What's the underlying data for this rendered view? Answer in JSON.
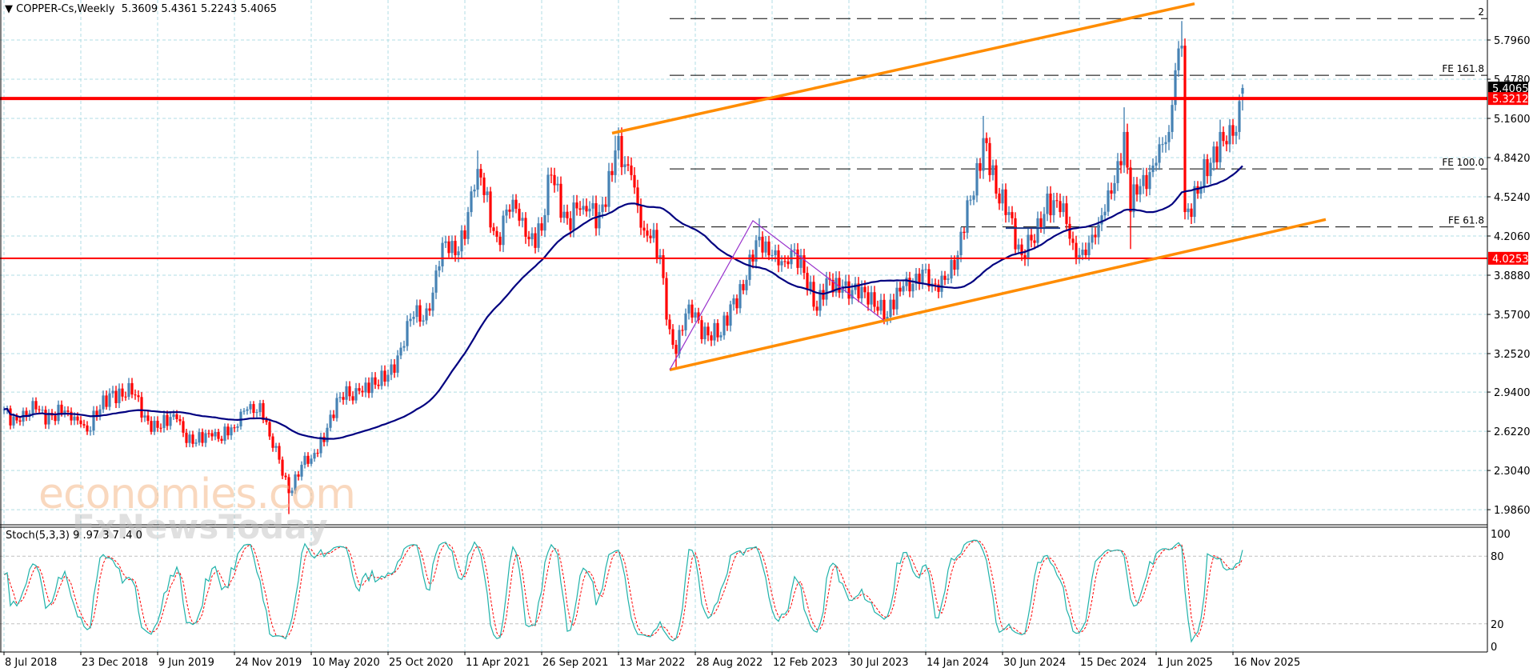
{
  "header": {
    "symbol": "COPPER-Cs,Weekly",
    "ohlc": "5.3609 5.4361 5.2243 5.4065"
  },
  "stoch_label": {
    "name": "Stoch(5,3,3)",
    "values": "9 .97 3 7 .4 0"
  },
  "watermarks": [
    "economies.com",
    "FxNewsToday"
  ],
  "colors": {
    "bull": "#4682B4",
    "bear": "#FF0000",
    "ma": "#000080",
    "channel": "#FF8C00",
    "level": "#FF0000",
    "pattern": "#9932CC",
    "stoch_main": "#20B2AA",
    "stoch_signal": "#FF0000",
    "grid": "#B0DDE4",
    "tag_current": "#000000"
  },
  "chart_data": {
    "type": "candlestick",
    "timeframe": "Weekly",
    "price_ticks": [
      "5.7960",
      "5.4780",
      "5.1600",
      "4.8420",
      "4.5240",
      "4.2060",
      "3.8880",
      "3.5700",
      "3.2520",
      "2.9400",
      "2.6220",
      "2.3040",
      "1.9860"
    ],
    "date_ticks": [
      "8 Jul 2018",
      "23 Dec 2018",
      "9 Jun 2019",
      "24 Nov 2019",
      "10 May 2020",
      "25 Oct 2020",
      "11 Apr 2021",
      "26 Sep 2021",
      "13 Mar 2022",
      "28 Aug 2022",
      "12 Feb 2023",
      "30 Jul 2023",
      "14 Jan 2024",
      "30 Jun 2024",
      "15 Dec 2024",
      "1 Jun 2025",
      "16 Nov 2025"
    ],
    "price_tags": [
      {
        "value": "5.4065",
        "kind": "current"
      },
      {
        "value": "5.3212",
        "kind": "level"
      },
      {
        "value": "4.0253",
        "kind": "level"
      }
    ],
    "closes": [
      [
        "2018-07-08",
        2.8
      ],
      [
        "2018-08-12",
        2.7
      ],
      [
        "2018-09-16",
        2.8
      ],
      [
        "2018-10-21",
        2.75
      ],
      [
        "2018-11-25",
        2.78
      ],
      [
        "2018-12-23",
        2.68
      ],
      [
        "2019-01-06",
        2.62
      ],
      [
        "2019-02-03",
        2.8
      ],
      [
        "2019-03-03",
        2.95
      ],
      [
        "2019-04-14",
        2.92
      ],
      [
        "2019-05-12",
        2.75
      ],
      [
        "2019-06-09",
        2.65
      ],
      [
        "2019-07-21",
        2.72
      ],
      [
        "2019-08-25",
        2.52
      ],
      [
        "2019-10-06",
        2.58
      ],
      [
        "2019-11-24",
        2.65
      ],
      [
        "2019-12-22",
        2.8
      ],
      [
        "2020-01-19",
        2.85
      ],
      [
        "2020-02-09",
        2.58
      ],
      [
        "2020-03-15",
        2.25
      ],
      [
        "2020-03-22",
        2.12,
        null,
        1.95
      ],
      [
        "2020-04-19",
        2.35
      ],
      [
        "2020-05-10",
        2.4
      ],
      [
        "2020-06-14",
        2.65
      ],
      [
        "2020-07-12",
        2.9
      ],
      [
        "2020-08-23",
        2.95
      ],
      [
        "2020-09-27",
        3.0
      ],
      [
        "2020-10-25",
        3.08
      ],
      [
        "2020-11-22",
        3.3
      ],
      [
        "2020-12-20",
        3.55
      ],
      [
        "2021-01-24",
        3.6
      ],
      [
        "2021-02-21",
        4.15
      ],
      [
        "2021-03-21",
        4.05
      ],
      [
        "2021-04-18",
        4.4
      ],
      [
        "2021-05-09",
        4.75,
        4.9
      ],
      [
        "2021-06-20",
        4.2
      ],
      [
        "2021-07-25",
        4.5
      ],
      [
        "2021-08-22",
        4.2
      ],
      [
        "2021-09-26",
        4.25
      ],
      [
        "2021-10-17",
        4.7
      ],
      [
        "2021-11-21",
        4.35
      ],
      [
        "2021-12-26",
        4.45
      ],
      [
        "2022-01-30",
        4.4
      ],
      [
        "2022-02-27",
        4.7
      ],
      [
        "2022-03-06",
        4.9,
        5.02
      ],
      [
        "2022-04-10",
        4.7
      ],
      [
        "2022-05-08",
        4.25
      ],
      [
        "2022-06-12",
        4.05
      ],
      [
        "2022-07-03",
        3.45
      ],
      [
        "2022-07-17",
        3.25,
        null,
        3.13
      ],
      [
        "2022-08-14",
        3.65
      ],
      [
        "2022-09-25",
        3.4
      ],
      [
        "2022-10-23",
        3.4
      ],
      [
        "2022-11-20",
        3.7
      ],
      [
        "2022-12-18",
        3.85
      ],
      [
        "2023-01-15",
        4.2,
        4.35
      ],
      [
        "2023-02-12",
        4.05
      ],
      [
        "2023-03-12",
        4.0
      ],
      [
        "2023-04-16",
        4.05
      ],
      [
        "2023-05-21",
        3.6
      ],
      [
        "2023-06-18",
        3.85
      ],
      [
        "2023-07-16",
        3.8
      ],
      [
        "2023-08-20",
        3.7
      ],
      [
        "2023-09-17",
        3.75
      ],
      [
        "2023-10-22",
        3.55
      ],
      [
        "2023-11-26",
        3.8
      ],
      [
        "2023-12-24",
        3.9
      ],
      [
        "2024-01-28",
        3.82
      ],
      [
        "2024-02-25",
        3.85
      ],
      [
        "2024-03-24",
        4.05
      ],
      [
        "2024-04-21",
        4.5
      ],
      [
        "2024-05-19",
        5.0,
        5.18
      ],
      [
        "2024-06-16",
        4.55
      ],
      [
        "2024-07-14",
        4.4
      ],
      [
        "2024-08-11",
        4.05
      ],
      [
        "2024-09-08",
        4.15
      ],
      [
        "2024-10-06",
        4.55
      ],
      [
        "2024-11-03",
        4.4
      ],
      [
        "2024-12-01",
        4.15
      ],
      [
        "2024-12-29",
        4.05
      ],
      [
        "2025-01-26",
        4.3
      ],
      [
        "2025-02-23",
        4.55
      ],
      [
        "2025-03-23",
        5.05,
        5.25
      ],
      [
        "2025-04-06",
        4.4,
        null,
        4.1
      ],
      [
        "2025-05-04",
        4.7
      ],
      [
        "2025-06-01",
        4.8
      ],
      [
        "2025-06-29",
        5.05
      ],
      [
        "2025-07-13",
        5.55
      ],
      [
        "2025-07-27",
        5.75,
        5.95
      ],
      [
        "2025-08-03",
        4.4
      ],
      [
        "2025-08-31",
        4.55
      ],
      [
        "2025-09-28",
        4.8
      ],
      [
        "2025-10-19",
        5.05,
        5.15
      ],
      [
        "2025-11-02",
        4.95
      ],
      [
        "2025-11-23",
        5.05
      ],
      [
        "2025-11-30",
        5.3
      ],
      [
        "2025-12-07",
        5.4065,
        5.4361,
        5.2243,
        5.3609
      ]
    ],
    "moving_average_period": 50,
    "horizontal_levels": [
      {
        "price": 5.3212,
        "weight": "thick"
      },
      {
        "price": 4.0253,
        "weight": "thin"
      }
    ],
    "channel": {
      "upper": [
        [
          "2022-02-27",
          5.04
        ],
        [
          "2025-08-24",
          6.09
        ]
      ],
      "lower": [
        [
          "2022-07-03",
          3.12
        ],
        [
          "2026-06-07",
          4.34
        ]
      ]
    },
    "pattern_lines": [
      [
        "2022-07-03",
        3.12
      ],
      [
        "2023-01-01",
        4.33
      ],
      [
        "2023-10-15",
        3.52
      ]
    ],
    "short_segment": [
      [
        "2024-07-07",
        4.27
      ],
      [
        "2024-11-03",
        4.27
      ]
    ],
    "fib_expansion": {
      "start": "2022-07-03",
      "levels": [
        {
          "label": "2",
          "price": 5.97
        },
        {
          "label": "FE 161.8",
          "price": 5.51
        },
        {
          "label": "FE 100.0",
          "price": 4.75
        },
        {
          "label": "FE 61.8",
          "price": 4.28
        }
      ]
    },
    "stochastic": {
      "k": 5,
      "d": 3,
      "slowing": 3,
      "ticks": [
        "100",
        "80",
        "20",
        "0"
      ],
      "levels": [
        80,
        20
      ]
    }
  }
}
